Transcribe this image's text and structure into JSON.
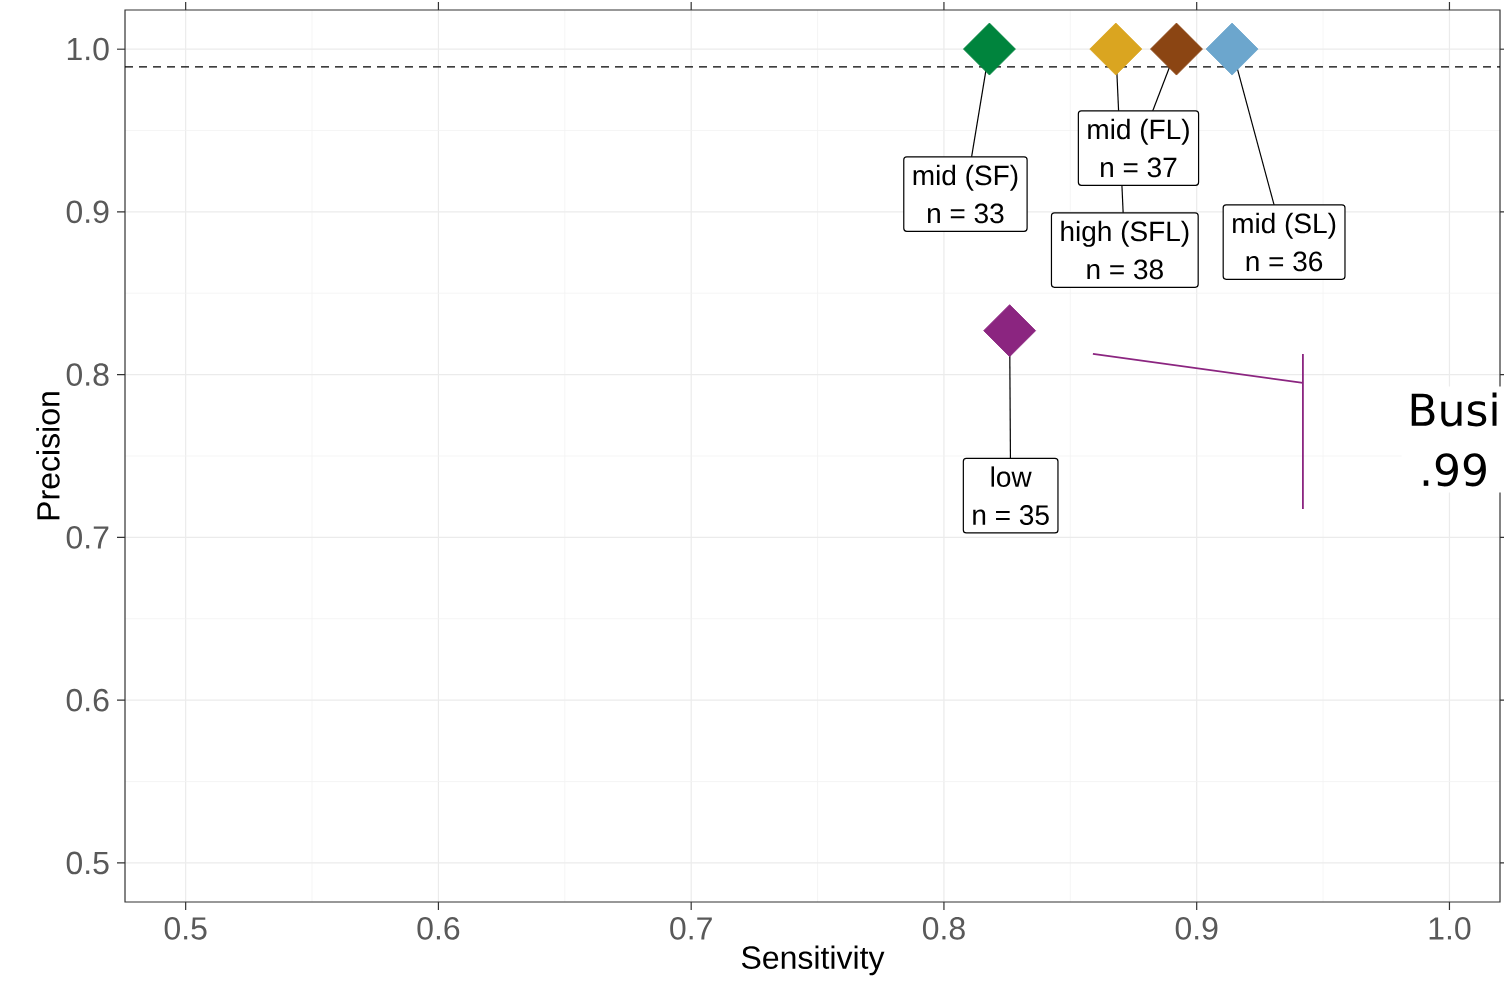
{
  "chart_data": {
    "type": "scatter",
    "xlabel": "Sensitivity",
    "ylabel": "Precision",
    "xlim": [
      0.476,
      1.02
    ],
    "ylim": [
      0.476,
      1.024
    ],
    "xticks": [
      0.5,
      0.6,
      0.7,
      0.8,
      0.9,
      {
        "value": 1.0,
        "label": "1.0"
      }
    ],
    "yticks": [
      0.5,
      0.6,
      0.7,
      0.8,
      0.9,
      {
        "value": 1.0,
        "label": "1.0"
      }
    ],
    "grid": true,
    "marker": "diamond",
    "series": [
      {
        "color": "#00843d",
        "x": [
          0.818
        ],
        "values": [
          1.0
        ]
      },
      {
        "color": "#daa520",
        "x": [
          0.868
        ],
        "values": [
          1.0
        ]
      },
      {
        "color": "#8b4513",
        "x": [
          0.892
        ],
        "values": [
          1.0
        ]
      },
      {
        "color": "#6ca6cd",
        "x": [
          0.914
        ],
        "values": [
          1.0
        ]
      },
      {
        "color": "#8b2580",
        "x": [
          0.826
        ],
        "values": [
          0.827
        ]
      }
    ],
    "ref_lines": [
      {
        "axis": "y",
        "value": 0.989,
        "color": "#000000",
        "line_style": "dashed"
      }
    ],
    "annotations": [
      {
        "text": "mid (SF)",
        "x": 0.818,
        "y": 1.0
      },
      {
        "text": "n = 33",
        "x": 0.818,
        "y": 1.0
      },
      {
        "text": "high (SFL)",
        "x": 0.868,
        "y": 1.0
      },
      {
        "text": "n = 38",
        "x": 0.868,
        "y": 1.0
      },
      {
        "text": "mid (FL)",
        "x": 0.892,
        "y": 1.0
      },
      {
        "text": "n = 37",
        "x": 0.892,
        "y": 1.0
      },
      {
        "text": "mid (SL)",
        "x": 0.914,
        "y": 1.0
      },
      {
        "text": "n = 36",
        "x": 0.914,
        "y": 1.0
      },
      {
        "text": "low",
        "x": 0.826,
        "y": 0.827
      },
      {
        "text": "n = 35",
        "x": 0.826,
        "y": 0.827
      },
      "Busi",
      ".99"
    ]
  }
}
